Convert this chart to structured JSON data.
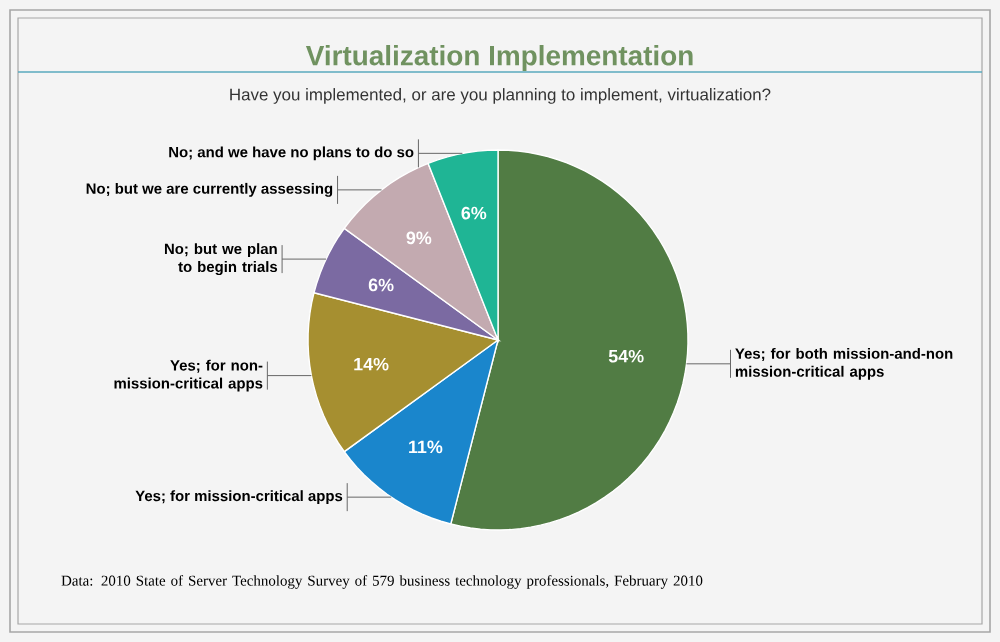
{
  "chart_data": {
    "type": "pie",
    "title": "Virtualization Implementation",
    "subtitle": "Have you implemented, or are you planning to implement, virtualization?",
    "categories": [
      "Yes; for both mission-and-non mission-critical apps",
      "Yes; for mission-critical apps",
      "Yes; for non-mission-critical apps",
      "No; but we plan to begin trials",
      "No; but we are currently assessing",
      "No; and we have no plans to do so"
    ],
    "values": [
      54,
      11,
      14,
      6,
      9,
      6
    ],
    "value_labels": [
      "54%",
      "11%",
      "14%",
      "6%",
      "9%",
      "6%"
    ],
    "colors": [
      "#517c44",
      "#1a86cc",
      "#a68f30",
      "#7b6aa2",
      "#c3aab0",
      "#1fb595"
    ],
    "annotations": [
      "Data: 2010 State of Server Technology Survey of 579 business technology professionals, February 2010"
    ]
  }
}
